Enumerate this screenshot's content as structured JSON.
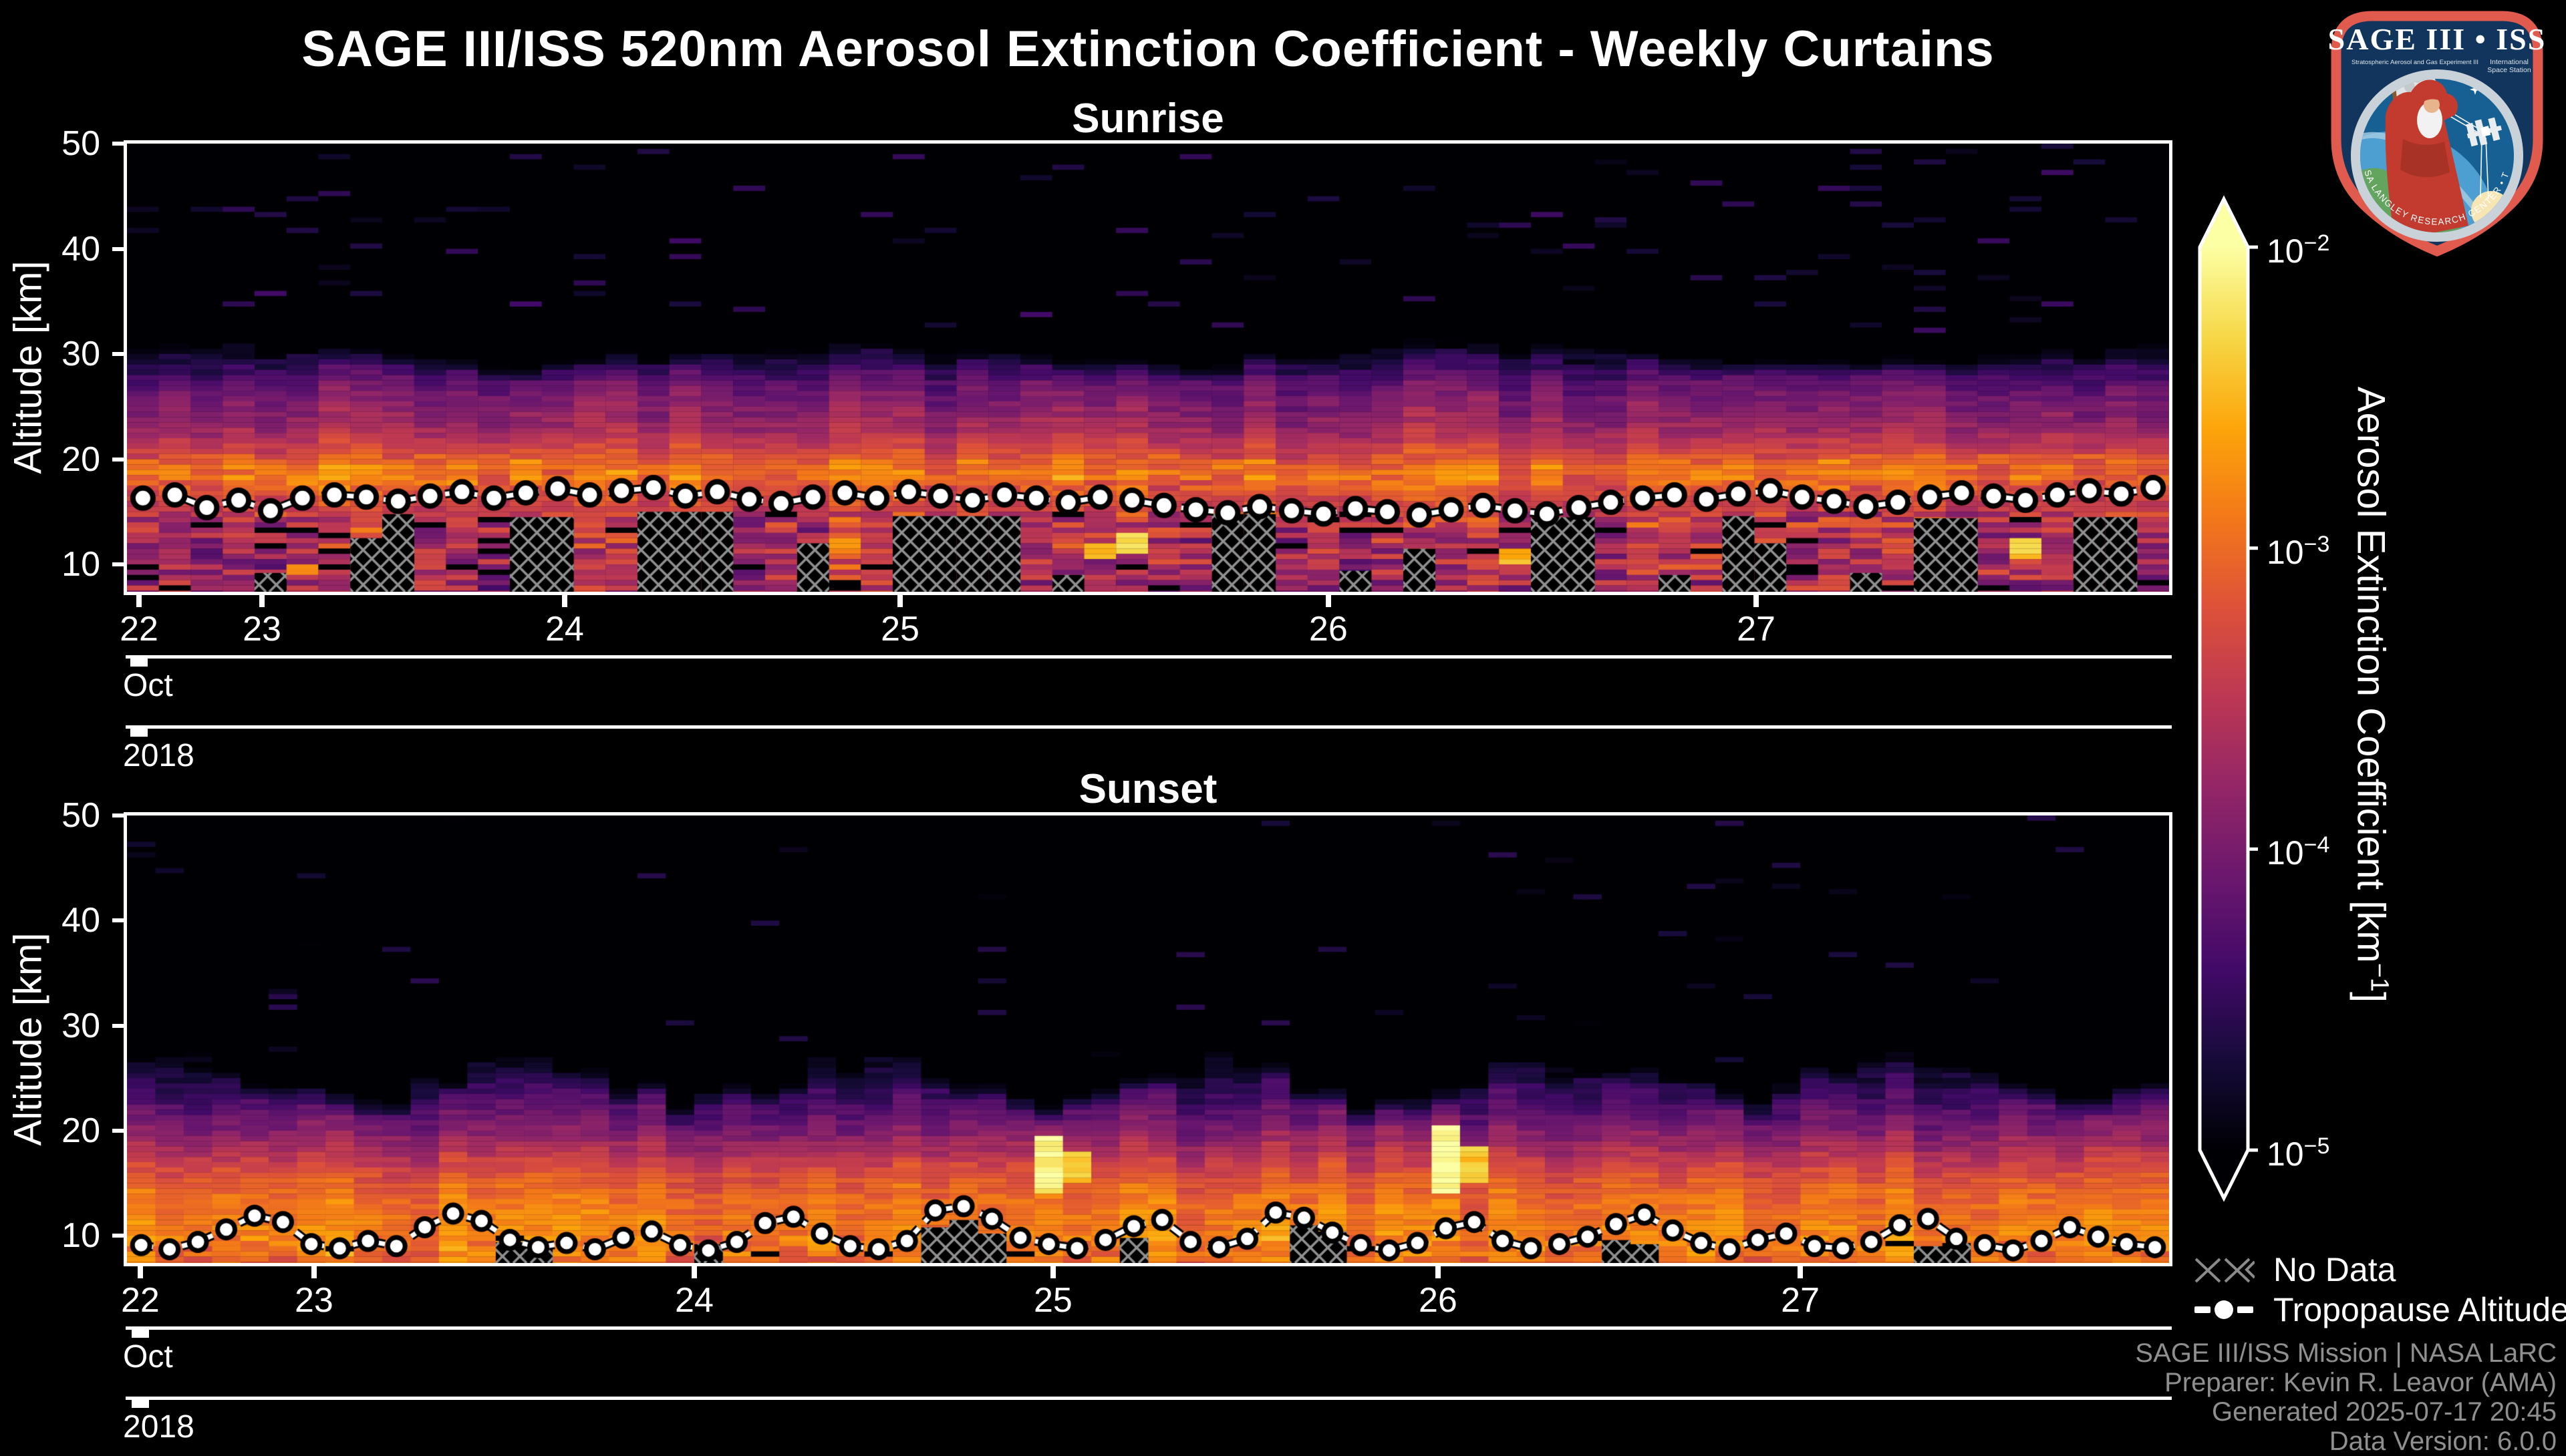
{
  "title": "SAGE III/ISS 520nm Aerosol Extinction Coefficient - Weekly Curtains",
  "legend": {
    "no_data": "No Data",
    "tropopause": "Tropopause Altitude"
  },
  "credits": [
    "SAGE III/ISS Mission | NASA LaRC",
    "Preparer: Kevin R. Leavor (AMA)",
    "Generated 2025-07-17 20:45",
    "Data Version: 6.0.0"
  ],
  "logo": {
    "title": "SAGE III • ISS",
    "subtitle_left": "Stratospheric Aerosol and Gas Experiment III",
    "subtitle_right_1": "International",
    "subtitle_right_2": "Space Station",
    "ring_text": "BALL • NASA LANGLEY RESEARCH CENTER • TAS-I • ESA"
  },
  "chart_data": {
    "type": "heatmap",
    "title": "SAGE III/ISS 520nm Aerosol Extinction Coefficient - Weekly Curtains",
    "colorbar": {
      "label_parts": [
        "Aerosol Extinction Coefficient [km",
        "−1",
        "]"
      ],
      "scale": "log",
      "vmin_exp": -5,
      "vmax_exp": -2,
      "ticks": [
        {
          "base": "10",
          "exp": "−2",
          "value": 0.01
        },
        {
          "base": "10",
          "exp": "−3",
          "value": 0.001
        },
        {
          "base": "10",
          "exp": "−4",
          "value": 0.0001
        },
        {
          "base": "10",
          "exp": "−5",
          "value": 1e-05
        }
      ],
      "colormap": "inferno",
      "extend": "both"
    },
    "month_label": "Oct",
    "year_label": "2018",
    "panels": [
      {
        "id": "sunrise",
        "title": "Sunrise",
        "ylabel": "Altitude [km]",
        "yticks": [
          50,
          40,
          30,
          20,
          10
        ],
        "alt_top": 50,
        "alt_bottom": 7.4,
        "bin_km": 0.5,
        "n_cols": 64,
        "seed": 1337,
        "xticks": [
          {
            "label": "22",
            "f": 0.0059
          },
          {
            "label": "23",
            "f": 0.0661
          },
          {
            "label": "24",
            "f": 0.2143
          },
          {
            "label": "25",
            "f": 0.3786
          },
          {
            "label": "26",
            "f": 0.5883
          },
          {
            "label": "27",
            "f": 0.7978
          }
        ],
        "black_base": -5.65,
        "speck_p": 0.045,
        "col_jitter": 0.2,
        "cell_noise": 0.16,
        "ceiling": {
          "base": 27.5,
          "amp": 3.0,
          "freq": 0.31,
          "phase": 1.2,
          "rand": 1.4,
          "fade": 3.5
        },
        "band_boost": {
          "lo": 17.0,
          "hi": 20.5,
          "p": 0.2,
          "v": -2.45,
          "extra": 0.22
        },
        "deep": {
          "below": 15.0,
          "amp": 0.45,
          "black_p": 0.06
        },
        "base_profile": [
          [
            50,
            -5.65
          ],
          [
            33,
            -5.5
          ],
          [
            30,
            -4.75
          ],
          [
            27,
            -4.1
          ],
          [
            23,
            -3.7
          ],
          [
            21,
            -3.35
          ],
          [
            19.5,
            -2.95
          ],
          [
            18.2,
            -2.9
          ],
          [
            17,
            -3.15
          ],
          [
            15.5,
            -3.35
          ],
          [
            13,
            -3.55
          ],
          [
            10,
            -3.6
          ],
          [
            7.4,
            -3.7
          ]
        ],
        "marker": {
          "r": 15,
          "edge": 8
        },
        "tropopause": [
          16.3,
          16.6,
          15.4,
          16.1,
          15.1,
          16.3,
          16.6,
          16.4,
          16.0,
          16.5,
          16.9,
          16.3,
          16.8,
          17.2,
          16.6,
          17.0,
          17.3,
          16.5,
          16.9,
          16.2,
          15.8,
          16.4,
          16.8,
          16.3,
          16.9,
          16.5,
          16.1,
          16.6,
          16.3,
          15.9,
          16.4,
          16.1,
          15.6,
          15.2,
          14.9,
          15.5,
          15.1,
          14.8,
          15.3,
          15.0,
          14.7,
          15.2,
          15.6,
          15.1,
          14.8,
          15.4,
          15.9,
          16.3,
          16.6,
          16.2,
          16.7,
          17.0,
          16.4,
          16.0,
          15.5,
          15.9,
          16.4,
          16.8,
          16.5,
          16.1,
          16.6,
          17.0,
          16.7,
          17.3
        ],
        "nodata": [
          null,
          null,
          null,
          null,
          9.2,
          null,
          null,
          12.5,
          14.8,
          null,
          null,
          null,
          14.5,
          14.5,
          null,
          null,
          15.0,
          15.0,
          15.0,
          null,
          null,
          12.0,
          null,
          null,
          14.6,
          14.6,
          14.6,
          14.6,
          null,
          9.0,
          null,
          null,
          null,
          null,
          14.8,
          14.8,
          null,
          null,
          9.4,
          null,
          11.5,
          null,
          null,
          null,
          14.5,
          14.5,
          null,
          null,
          9.0,
          null,
          14.6,
          12.0,
          null,
          null,
          9.2,
          null,
          14.4,
          14.4,
          null,
          null,
          null,
          14.5,
          14.5,
          null
        ],
        "bright": [
          {
            "col": 5,
            "lo": 9.0,
            "hi": 10.0,
            "v": -2.8
          },
          {
            "col": 22,
            "lo": 11.0,
            "hi": 12.5,
            "v": -2.7
          },
          {
            "col": 30,
            "lo": 10.5,
            "hi": 12.0,
            "v": -2.6
          },
          {
            "col": 31,
            "lo": 11.0,
            "hi": 13.0,
            "v": -2.3
          },
          {
            "col": 43,
            "lo": 10.0,
            "hi": 11.5,
            "v": -2.5
          },
          {
            "col": 59,
            "lo": 10.5,
            "hi": 12.5,
            "v": -2.4
          }
        ]
      },
      {
        "id": "sunset",
        "title": "Sunset",
        "ylabel": "Altitude [km]",
        "yticks": [
          50,
          40,
          30,
          20,
          10
        ],
        "alt_top": 50,
        "alt_bottom": 7.4,
        "bin_km": 0.5,
        "n_cols": 72,
        "seed": 2024,
        "xticks": [
          {
            "label": "22",
            "f": 0.0065
          },
          {
            "label": "23",
            "f": 0.0916
          },
          {
            "label": "24",
            "f": 0.2778
          },
          {
            "label": "25",
            "f": 0.4535
          },
          {
            "label": "26",
            "f": 0.642
          },
          {
            "label": "27",
            "f": 0.8194
          }
        ],
        "black_base": -5.8,
        "speck_p": 0.02,
        "col_jitter": 0.18,
        "cell_noise": 0.16,
        "ceiling": {
          "base": 21.5,
          "amp": 4.5,
          "freq": 0.52,
          "phase": 0.8,
          "rand": 3.0,
          "fade": 4.5
        },
        "band_boost": null,
        "deep": {
          "below": 10.0,
          "amp": 0.2,
          "black_p": 0.02
        },
        "base_profile": [
          [
            50,
            -5.8
          ],
          [
            31,
            -5.6
          ],
          [
            27,
            -4.9
          ],
          [
            23,
            -4.35
          ],
          [
            20,
            -3.95
          ],
          [
            17.5,
            -3.5
          ],
          [
            15,
            -3.1
          ],
          [
            13,
            -2.95
          ],
          [
            10.5,
            -2.85
          ],
          [
            8.5,
            -2.9
          ],
          [
            7.4,
            -3.0
          ]
        ],
        "marker": {
          "r": 13,
          "edge": 7
        },
        "tropopause": [
          9.1,
          8.7,
          9.4,
          10.6,
          11.9,
          11.3,
          9.2,
          8.8,
          9.5,
          9.0,
          10.8,
          12.1,
          11.4,
          9.6,
          8.9,
          9.3,
          8.7,
          9.8,
          10.4,
          9.1,
          8.6,
          9.4,
          11.2,
          11.8,
          10.2,
          9.0,
          8.7,
          9.5,
          12.4,
          12.8,
          11.6,
          9.8,
          9.2,
          8.8,
          9.6,
          10.9,
          11.5,
          9.4,
          8.9,
          9.7,
          12.2,
          11.7,
          10.3,
          9.1,
          8.6,
          9.3,
          10.7,
          11.3,
          9.5,
          8.8,
          9.2,
          9.9,
          11.1,
          12.0,
          10.5,
          9.3,
          8.7,
          9.6,
          10.2,
          9.0,
          8.8,
          9.4,
          11.0,
          11.6,
          9.7,
          9.1,
          8.6,
          9.5,
          10.8,
          9.9,
          9.2,
          8.9
        ],
        "nodata": [
          null,
          null,
          null,
          null,
          null,
          null,
          null,
          null,
          null,
          null,
          null,
          null,
          null,
          9.4,
          9.0,
          null,
          null,
          null,
          null,
          null,
          9.2,
          null,
          null,
          null,
          null,
          null,
          null,
          null,
          10.8,
          11.5,
          10.2,
          null,
          null,
          null,
          null,
          9.8,
          null,
          null,
          null,
          null,
          null,
          11.0,
          10.4,
          null,
          null,
          null,
          null,
          null,
          null,
          null,
          null,
          null,
          9.6,
          9.2,
          null,
          null,
          null,
          null,
          null,
          null,
          null,
          null,
          null,
          9.0,
          9.3,
          null,
          null,
          null,
          null,
          null,
          null,
          null
        ],
        "bright": [
          {
            "col": 32,
            "lo": 14.0,
            "hi": 19.5,
            "v": -2.1
          },
          {
            "col": 33,
            "lo": 15.0,
            "hi": 18.0,
            "v": -2.4
          },
          {
            "col": 46,
            "lo": 14.0,
            "hi": 20.5,
            "v": -2.0
          },
          {
            "col": 47,
            "lo": 15.0,
            "hi": 18.5,
            "v": -2.4
          }
        ]
      }
    ]
  }
}
